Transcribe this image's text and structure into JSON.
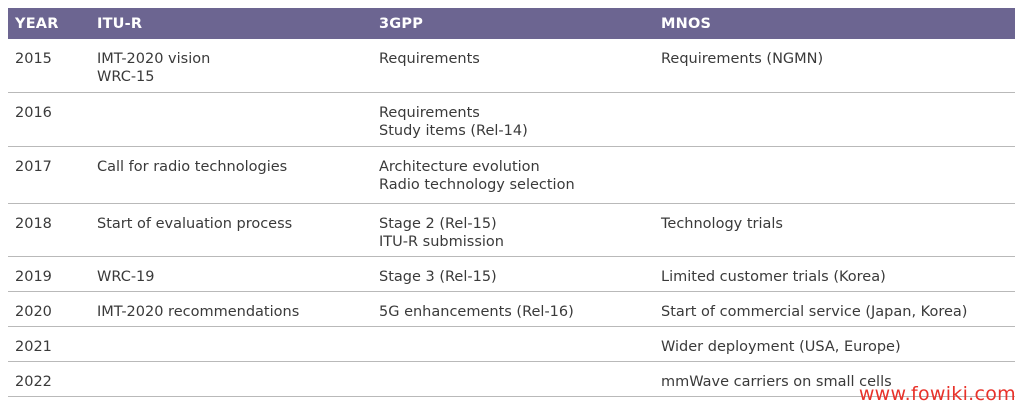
{
  "table": {
    "headers": {
      "year": "YEAR",
      "itu_r": "ITU-R",
      "threegpp": "3GPP",
      "mnos": "MNOS"
    },
    "rows": [
      {
        "year": "2015",
        "itu_r": [
          "IMT-2020 vision",
          "WRC-15"
        ],
        "threegpp": [
          "Requirements"
        ],
        "mnos": [
          "Requirements (NGMN)"
        ]
      },
      {
        "year": "2016",
        "itu_r": [],
        "threegpp": [
          "Requirements",
          "Study items (Rel-14)"
        ],
        "mnos": []
      },
      {
        "year": "2017",
        "itu_r": [
          "Call for radio technologies"
        ],
        "threegpp": [
          "Architecture evolution",
          "Radio technology selection"
        ],
        "mnos": []
      },
      {
        "year": "2018",
        "itu_r": [
          "Start of evaluation process"
        ],
        "threegpp": [
          "Stage 2 (Rel-15)",
          "ITU-R submission"
        ],
        "mnos": [
          "Technology trials"
        ]
      },
      {
        "year": "2019",
        "itu_r": [
          "WRC-19"
        ],
        "threegpp": [
          "Stage 3 (Rel-15)"
        ],
        "mnos": [
          "Limited customer trials (Korea)"
        ]
      },
      {
        "year": "2020",
        "itu_r": [
          "IMT-2020 recommendations"
        ],
        "threegpp": [
          "5G enhancements (Rel-16)"
        ],
        "mnos": [
          "Start of commercial service (Japan, Korea)"
        ]
      },
      {
        "year": "2021",
        "itu_r": [],
        "threegpp": [],
        "mnos": [
          "Wider deployment (USA, Europe)"
        ]
      },
      {
        "year": "2022",
        "itu_r": [],
        "threegpp": [],
        "mnos": [
          "mmWave carriers on small cells"
        ]
      }
    ]
  },
  "watermark": "www.fowiki.com",
  "colors": {
    "header_bg": "#6c6591",
    "header_text": "#ffffff",
    "row_divider": "#b9b9b9",
    "watermark": "#e8322a"
  }
}
